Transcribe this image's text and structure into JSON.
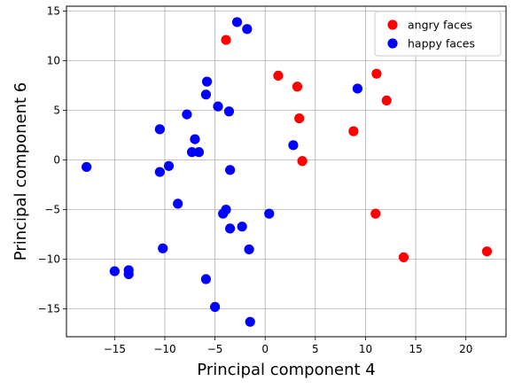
{
  "chart_data": {
    "type": "scatter",
    "xlabel": "Principal component 4",
    "ylabel": "Principal component 6",
    "xlim": [
      -19.8,
      24.0
    ],
    "ylim": [
      -17.8,
      15.5
    ],
    "xticks": [
      -15,
      -10,
      -5,
      0,
      5,
      10,
      15,
      20
    ],
    "yticks": [
      -15,
      -10,
      -5,
      0,
      5,
      10,
      15
    ],
    "xtick_labels": [
      "−15",
      "−10",
      "−5",
      "0",
      "5",
      "10",
      "15",
      "20"
    ],
    "ytick_labels": [
      "−15",
      "−10",
      "−5",
      "0",
      "5",
      "10",
      "15"
    ],
    "grid": true,
    "legend_position": "top-right",
    "series": [
      {
        "name": "angry faces",
        "color": "#ff0000",
        "points": [
          [
            -3.9,
            12.1
          ],
          [
            1.3,
            8.5
          ],
          [
            3.2,
            7.4
          ],
          [
            3.4,
            4.2
          ],
          [
            3.7,
            -0.1
          ],
          [
            8.8,
            2.9
          ],
          [
            11.1,
            8.7
          ],
          [
            12.1,
            6.0
          ],
          [
            11.0,
            -5.4
          ],
          [
            13.8,
            -9.8
          ],
          [
            22.1,
            -9.2
          ]
        ]
      },
      {
        "name": "happy faces",
        "color": "#0000ff",
        "points": [
          [
            -2.8,
            13.9
          ],
          [
            -1.8,
            13.2
          ],
          [
            -5.8,
            7.9
          ],
          [
            -5.9,
            6.6
          ],
          [
            -4.7,
            5.4
          ],
          [
            -3.6,
            4.9
          ],
          [
            -7.8,
            4.6
          ],
          [
            -10.5,
            3.1
          ],
          [
            -7.0,
            2.1
          ],
          [
            -7.3,
            0.8
          ],
          [
            -6.6,
            0.8
          ],
          [
            -9.6,
            -0.6
          ],
          [
            -10.5,
            -1.2
          ],
          [
            -3.5,
            -1.0
          ],
          [
            -17.8,
            -0.7
          ],
          [
            -8.7,
            -4.4
          ],
          [
            -4.2,
            -5.4
          ],
          [
            -3.9,
            -5.0
          ],
          [
            -3.5,
            -6.9
          ],
          [
            -2.3,
            -6.7
          ],
          [
            0.4,
            -5.4
          ],
          [
            -1.6,
            -9.0
          ],
          [
            -10.2,
            -8.9
          ],
          [
            -15.0,
            -11.2
          ],
          [
            -13.6,
            -11.1
          ],
          [
            -13.6,
            -11.5
          ],
          [
            -5.9,
            -12.0
          ],
          [
            -5.0,
            -14.8
          ],
          [
            -1.5,
            -16.3
          ],
          [
            2.8,
            1.5
          ],
          [
            9.2,
            7.2
          ]
        ]
      }
    ]
  }
}
